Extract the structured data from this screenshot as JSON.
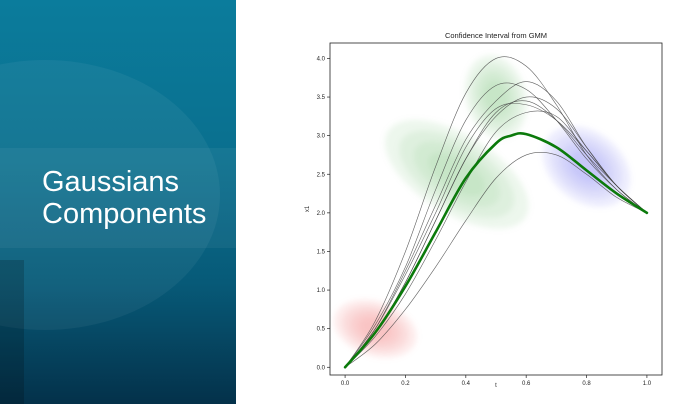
{
  "slide": {
    "title_lines": [
      "Gaussians",
      "Components"
    ]
  },
  "chart_data": {
    "type": "line",
    "title": "Confidence Interval from GMM",
    "xlabel": "t",
    "ylabel": "x1",
    "xlim": [
      -0.05,
      1.05
    ],
    "ylim": [
      -0.1,
      4.2
    ],
    "xticks": [
      0.0,
      0.2,
      0.4,
      0.6,
      0.8,
      1.0
    ],
    "xtick_labels": [
      "0.0",
      "0.2",
      "0.4",
      "0.6",
      "0.8",
      "1.0"
    ],
    "yticks": [
      0.0,
      0.5,
      1.0,
      1.5,
      2.0,
      2.5,
      3.0,
      3.5,
      4.0
    ],
    "ytick_labels": [
      "0.0",
      "0.5",
      "1.0",
      "1.5",
      "2.0",
      "2.5",
      "3.0",
      "3.5",
      "4.0"
    ],
    "grid": false,
    "colors": {
      "mean": "#0b7a0b",
      "demos": "#444444",
      "component_1": "#f08a8a",
      "component_2": "#8fd08f",
      "component_3": "#8f8ff0"
    },
    "components": [
      {
        "mean_x": 0.1,
        "mean_y": 0.5,
        "sx": 0.09,
        "sy": 0.55,
        "angle": -72,
        "color": "#f08a8a"
      },
      {
        "mean_x": 0.37,
        "mean_y": 2.5,
        "sx": 0.13,
        "sy": 1.05,
        "angle": -58,
        "color": "#8fd08f"
      },
      {
        "mean_x": 0.5,
        "mean_y": 3.5,
        "sx": 0.1,
        "sy": 0.55,
        "angle": -15,
        "color": "#8fd08f"
      },
      {
        "mean_x": 0.8,
        "mean_y": 2.6,
        "sx": 0.16,
        "sy": 0.45,
        "angle": 38,
        "color": "#8f8ff0"
      }
    ],
    "mean_series": {
      "x": [
        0.0,
        0.1,
        0.2,
        0.3,
        0.4,
        0.5,
        0.55,
        0.6,
        0.7,
        0.8,
        0.9,
        1.0
      ],
      "y": [
        0.0,
        0.45,
        1.05,
        1.75,
        2.45,
        2.9,
        3.0,
        3.02,
        2.85,
        2.55,
        2.25,
        2.0
      ]
    },
    "demo_series": [
      {
        "x": [
          0.0,
          0.1,
          0.2,
          0.3,
          0.4,
          0.5,
          0.6,
          0.7,
          0.8,
          0.9,
          1.0
        ],
        "y": [
          0.0,
          0.6,
          1.5,
          2.6,
          3.55,
          4.0,
          3.9,
          3.4,
          2.75,
          2.3,
          2.0
        ]
      },
      {
        "x": [
          0.0,
          0.1,
          0.2,
          0.3,
          0.4,
          0.5,
          0.6,
          0.7,
          0.8,
          0.9,
          1.0
        ],
        "y": [
          0.0,
          0.55,
          1.3,
          2.3,
          3.2,
          3.65,
          3.6,
          3.2,
          2.7,
          2.3,
          2.0
        ]
      },
      {
        "x": [
          0.0,
          0.1,
          0.2,
          0.3,
          0.4,
          0.5,
          0.6,
          0.7,
          0.8,
          0.9,
          1.0
        ],
        "y": [
          0.0,
          0.5,
          1.25,
          2.1,
          2.95,
          3.45,
          3.7,
          3.45,
          2.85,
          2.35,
          2.0
        ]
      },
      {
        "x": [
          0.0,
          0.1,
          0.2,
          0.3,
          0.4,
          0.5,
          0.6,
          0.7,
          0.8,
          0.9,
          1.0
        ],
        "y": [
          0.0,
          0.45,
          1.1,
          1.9,
          2.7,
          3.25,
          3.5,
          3.35,
          2.85,
          2.35,
          2.0
        ]
      },
      {
        "x": [
          0.0,
          0.1,
          0.2,
          0.3,
          0.4,
          0.5,
          0.6,
          0.7,
          0.8,
          0.9,
          1.0
        ],
        "y": [
          0.0,
          0.45,
          1.1,
          1.9,
          2.7,
          3.3,
          3.45,
          3.2,
          2.75,
          2.35,
          2.0
        ]
      },
      {
        "x": [
          0.0,
          0.1,
          0.2,
          0.3,
          0.4,
          0.5,
          0.6,
          0.7,
          0.8,
          0.9,
          1.0
        ],
        "y": [
          0.0,
          0.4,
          0.95,
          1.65,
          2.4,
          3.05,
          3.3,
          3.25,
          2.8,
          2.35,
          2.0
        ]
      },
      {
        "x": [
          0.0,
          0.1,
          0.2,
          0.3,
          0.4,
          0.5,
          0.6,
          0.7,
          0.8,
          0.9,
          1.0
        ],
        "y": [
          0.0,
          0.3,
          0.75,
          1.3,
          1.9,
          2.45,
          2.75,
          2.75,
          2.5,
          2.2,
          2.0
        ]
      },
      {
        "x": [
          0.0,
          0.1,
          0.2,
          0.3,
          0.4,
          0.5,
          0.6,
          0.7,
          0.8,
          0.9,
          1.0
        ],
        "y": [
          0.0,
          0.5,
          1.2,
          2.0,
          2.85,
          3.35,
          3.4,
          3.2,
          2.8,
          2.35,
          2.0
        ]
      }
    ]
  }
}
